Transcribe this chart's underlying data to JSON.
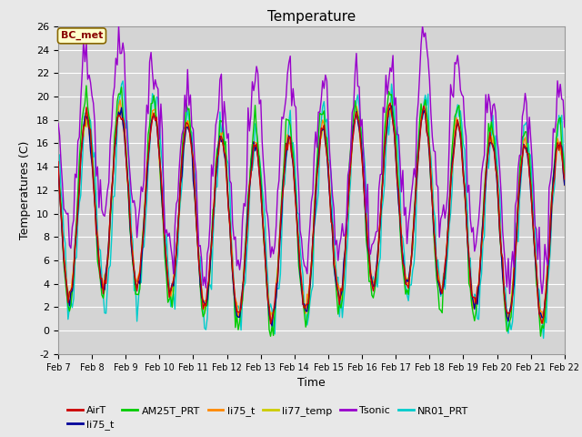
{
  "title": "Temperature",
  "xlabel": "Time",
  "ylabel": "Temperatures (C)",
  "ylim": [
    -2,
    26
  ],
  "xlim": [
    0,
    360
  ],
  "annotation": "BC_met",
  "colors": {
    "AirT": "#cc0000",
    "li75_t_blue": "#000099",
    "AM25T_PRT": "#00cc00",
    "li75_t_orange": "#ff8800",
    "li77_temp": "#cccc00",
    "Tsonic": "#9900cc",
    "NR01_PRT": "#00cccc"
  },
  "legend_labels": [
    "AirT",
    "li75_t",
    "AM25T_PRT",
    "li75_t",
    "li77_temp",
    "Tsonic",
    "NR01_PRT"
  ],
  "legend_colors": [
    "#cc0000",
    "#000099",
    "#00cc00",
    "#ff8800",
    "#cccc00",
    "#9900cc",
    "#00cccc"
  ],
  "bg_color": "#e8e8e8",
  "plot_bg_color": "#d4d4d4",
  "grid_color": "#ffffff",
  "yticks": [
    -2,
    0,
    2,
    4,
    6,
    8,
    10,
    12,
    14,
    16,
    18,
    20,
    22,
    24,
    26
  ],
  "xtick_labels": [
    "Feb 7",
    "Feb 8",
    "Feb 9",
    "Feb 10",
    "Feb 11",
    "Feb 12",
    "Feb 13",
    "Feb 14",
    "Feb 15",
    "Feb 16",
    "Feb 17",
    "Feb 18",
    "Feb 19",
    "Feb 20",
    "Feb 21",
    "Feb 22"
  ],
  "xtick_positions": [
    0,
    24,
    48,
    72,
    96,
    120,
    144,
    168,
    192,
    216,
    240,
    264,
    288,
    312,
    336,
    360
  ]
}
